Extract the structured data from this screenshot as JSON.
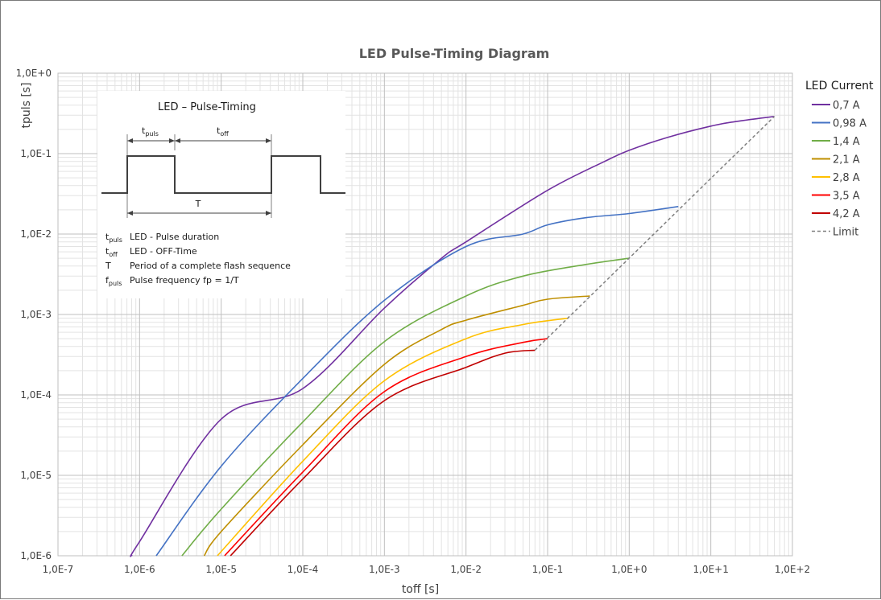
{
  "chart_data": {
    "type": "line",
    "title": "LED Pulse-Timing Diagram",
    "xlabel": "toff [s]",
    "ylabel": "tpuls [s]",
    "xscale": "log",
    "yscale": "log",
    "xlim": [
      1e-07,
      100
    ],
    "ylim": [
      1e-06,
      1
    ],
    "x_ticks": [
      "1,0E-7",
      "1,0E-6",
      "1,0E-5",
      "1,0E-4",
      "1,0E-3",
      "1,0E-2",
      "1,0E-1",
      "1,0E+0",
      "1,0E+1",
      "1,0E+2"
    ],
    "y_ticks": [
      "1,0E+0",
      "1,0E-1",
      "1,0E-2",
      "1,0E-3",
      "1,0E-4",
      "1,0E-5",
      "1,0E-6"
    ],
    "grid": true,
    "legend": {
      "title": "LED Current",
      "placement": "right"
    },
    "series": [
      {
        "name": "0,7 A",
        "color": "#7030a0",
        "style": "solid",
        "points": [
          [
            8e-07,
            1e-06
          ],
          [
            1e-06,
            1.5e-06
          ],
          [
            1e-05,
            5e-05
          ],
          [
            0.0001,
            0.00012
          ],
          [
            0.001,
            0.0012
          ],
          [
            0.005,
            0.005
          ],
          [
            0.01,
            0.008
          ],
          [
            0.1,
            0.035
          ],
          [
            0.5,
            0.08
          ],
          [
            1,
            0.11
          ],
          [
            3,
            0.16
          ],
          [
            10,
            0.22
          ],
          [
            20,
            0.25
          ],
          [
            60,
            0.29
          ]
        ]
      },
      {
        "name": "0,98 A",
        "color": "#4472c4",
        "style": "solid",
        "points": [
          [
            1.6e-06,
            1e-06
          ],
          [
            1e-05,
            1.3e-05
          ],
          [
            0.0001,
            0.00016
          ],
          [
            0.001,
            0.0015
          ],
          [
            0.01,
            0.007
          ],
          [
            0.05,
            0.01
          ],
          [
            0.1,
            0.013
          ],
          [
            0.3,
            0.016
          ],
          [
            1,
            0.018
          ],
          [
            4,
            0.022
          ]
        ]
      },
      {
        "name": "1,4 A",
        "color": "#70ad47",
        "style": "solid",
        "points": [
          [
            3.3e-06,
            1e-06
          ],
          [
            1e-05,
            3.8e-06
          ],
          [
            0.0001,
            4.6e-05
          ],
          [
            0.001,
            0.00046
          ],
          [
            0.01,
            0.0017
          ],
          [
            0.05,
            0.003
          ],
          [
            0.3,
            0.0042
          ],
          [
            1,
            0.005
          ]
        ]
      },
      {
        "name": "2,1 A",
        "color": "#bf8f00",
        "style": "solid",
        "points": [
          [
            6.2e-06,
            1e-06
          ],
          [
            1e-05,
            2e-06
          ],
          [
            0.0001,
            2.4e-05
          ],
          [
            0.001,
            0.00024
          ],
          [
            0.005,
            0.00065
          ],
          [
            0.01,
            0.00085
          ],
          [
            0.05,
            0.0013
          ],
          [
            0.1,
            0.00155
          ],
          [
            0.33,
            0.0017
          ]
        ]
      },
      {
        "name": "2,8 A",
        "color": "#ffc000",
        "style": "solid",
        "points": [
          [
            9e-06,
            1e-06
          ],
          [
            0.0001,
            1.5e-05
          ],
          [
            0.001,
            0.00015
          ],
          [
            0.01,
            0.0005
          ],
          [
            0.05,
            0.00075
          ],
          [
            0.18,
            0.0009
          ]
        ]
      },
      {
        "name": "3,5 A",
        "color": "#ff0000",
        "style": "solid",
        "points": [
          [
            1.1e-05,
            1e-06
          ],
          [
            0.0001,
            1.1e-05
          ],
          [
            0.001,
            0.00011
          ],
          [
            0.01,
            0.0003
          ],
          [
            0.05,
            0.00045
          ],
          [
            0.1,
            0.0005
          ]
        ]
      },
      {
        "name": "4,2 A",
        "color": "#c00000",
        "style": "solid",
        "points": [
          [
            1.3e-05,
            1e-06
          ],
          [
            0.0001,
            9e-06
          ],
          [
            0.001,
            8.5e-05
          ],
          [
            0.01,
            0.00022
          ],
          [
            0.03,
            0.00033
          ],
          [
            0.07,
            0.00036
          ]
        ]
      },
      {
        "name": "Limit",
        "color": "#7f7f7f",
        "style": "dashed",
        "points": [
          [
            0.07,
            0.00036
          ],
          [
            60,
            0.29
          ]
        ]
      }
    ]
  },
  "inset": {
    "title": "LED – Pulse-Timing",
    "label_t": "t",
    "label_puls": "puls",
    "label_off": "off",
    "label_T": "T",
    "definitions": [
      {
        "sym": "t",
        "sub": "puls",
        "text": "LED - Pulse duration"
      },
      {
        "sym": "t",
        "sub": "off",
        "text": "LED - OFF-Time"
      },
      {
        "sym": "T",
        "sub": "",
        "text": "Period of a complete flash sequence"
      },
      {
        "sym": "f",
        "sub": "puls",
        "text": "Pulse frequency fp = 1/T"
      }
    ]
  }
}
